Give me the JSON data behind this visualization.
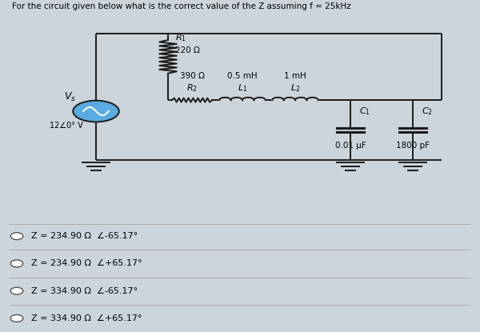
{
  "title": "For the circuit given below what is the correct value of the Z assuming f = 25kHz",
  "bg_top_color": "#cdd5dc",
  "bg_bottom_color": "#e8ede8",
  "R1_label": "R₁",
  "R1_value": "220 Ω",
  "R2_label": "R₂",
  "R2_value": "390 Ω",
  "L1_label": "L₁",
  "L1_value": "0.5 mH",
  "L2_label": "L₂",
  "L2_value": "1 mH",
  "C1_label": "C₁",
  "C1_value": "0.01 μF",
  "C2_label": "C₂",
  "C2_value": "1800 pF",
  "source_vs": "Vₙ",
  "source_voltage": "12∠0° V",
  "choices": [
    "Z = 234.90 Ω  ∠-65.17°",
    "Z = 234.90 Ω  ∠+65.17°",
    "Z = 334.90 Ω  ∠-65.17°",
    "Z = 334.90 Ω  ∠+65.17°"
  ],
  "wire_color": "#1a1a1a",
  "source_fill": "#5aace0",
  "title_fontsize": 7.5,
  "label_fontsize": 8,
  "value_fontsize": 7.5,
  "choice_fontsize": 8
}
